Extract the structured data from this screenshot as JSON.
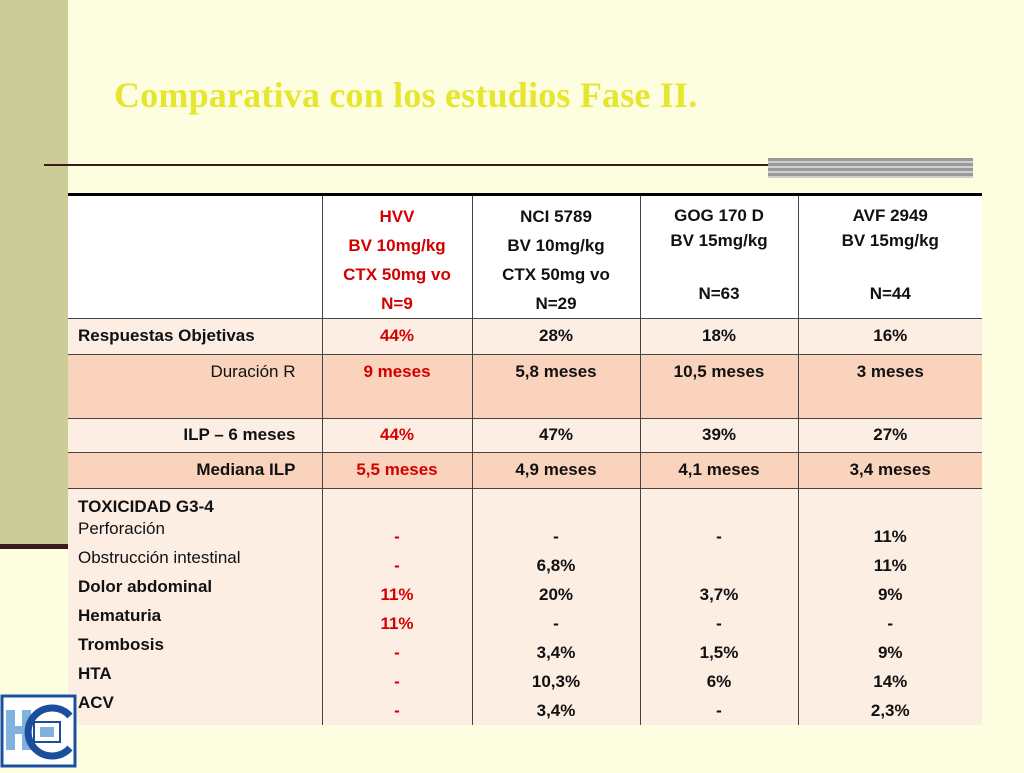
{
  "title": "Comparativa con los estudios Fase II.",
  "colors": {
    "accent_title": "#e6e62e",
    "highlight": "#d40000",
    "row_light": "#fdeee4",
    "row_dark": "#f9d3bb"
  },
  "table": {
    "headers": [
      {
        "lines": [
          "HVV",
          "BV 10mg/kg",
          "CTX 50mg vo",
          "N=9"
        ]
      },
      {
        "lines": [
          "NCI 5789",
          "BV 10mg/kg",
          "CTX 50mg vo",
          "N=29"
        ]
      },
      {
        "lines": [
          "GOG 170 D",
          "BV 15mg/kg",
          "",
          "N=63"
        ]
      },
      {
        "lines": [
          "AVF 2949",
          "BV 15mg/kg",
          "",
          "N=44"
        ]
      }
    ],
    "rows": [
      {
        "label": "Respuestas Objetivas",
        "values": [
          "44%",
          "28%",
          "18%",
          "16%"
        ]
      },
      {
        "label": "Duración R",
        "values": [
          "9 meses",
          "5,8 meses",
          "10,5 meses",
          "3 meses"
        ]
      },
      {
        "label": "ILP – 6 meses",
        "values": [
          "44%",
          "47%",
          "39%",
          "27%"
        ]
      },
      {
        "label": "Mediana ILP",
        "values": [
          "5,5 meses",
          "4,9 meses",
          "4,1 meses",
          "3,4 meses"
        ]
      }
    ],
    "toxicity": {
      "title": "TOXICIDAD G3-4",
      "labels": [
        "Perforación",
        "Obstrucción intestinal",
        "Dolor abdominal",
        "Hematuria",
        "Trombosis",
        "HTA",
        "ACV"
      ],
      "columns": [
        [
          "-",
          "-",
          "11%",
          "11%",
          "-",
          "-",
          "-"
        ],
        [
          "-",
          "6,8%",
          "20%",
          "-",
          "3,4%",
          "10,3%",
          "3,4%"
        ],
        [
          "-",
          "",
          "3,7%",
          "-",
          "1,5%",
          "6%",
          "-"
        ],
        [
          "11%",
          "11%",
          "9%",
          "-",
          "9%",
          "14%",
          "2,3%"
        ]
      ]
    }
  },
  "logo": {
    "text": "HC",
    "icon": "hospital-logo-icon"
  }
}
